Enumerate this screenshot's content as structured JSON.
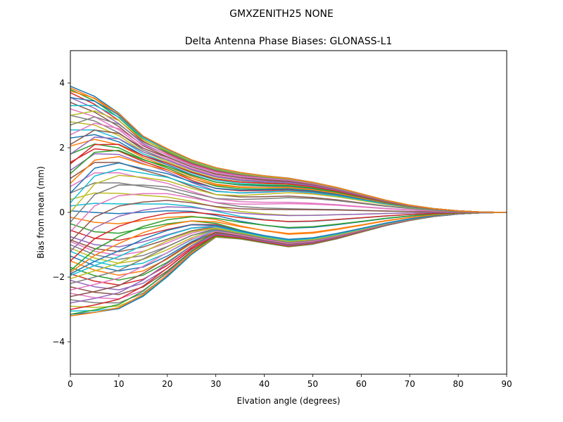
{
  "figure": {
    "suptitle": "GMXZENITH25     NONE"
  },
  "chart_data": {
    "type": "line",
    "title": "Delta Antenna Phase Biases: GLONASS-L1",
    "xlabel": "Elvation angle (degrees)",
    "ylabel": "Bias from mean (mm)",
    "xlim": [
      0,
      90
    ],
    "ylim": [
      -5,
      5
    ],
    "xticks": [
      0,
      10,
      20,
      30,
      40,
      50,
      60,
      70,
      80,
      90
    ],
    "yticks": [
      -4,
      -2,
      0,
      2,
      4
    ],
    "xtick_labels": [
      "0",
      "10",
      "20",
      "30",
      "40",
      "50",
      "60",
      "70",
      "80",
      "90"
    ],
    "ytick_labels": [
      "−4",
      "−2",
      "0",
      "2",
      "4"
    ],
    "grid": false,
    "legend": "none",
    "palette": [
      "#1f77b4",
      "#ff7f0e",
      "#2ca02c",
      "#d62728",
      "#9467bd",
      "#8c564b",
      "#e377c2",
      "#7f7f7f",
      "#bcbd22",
      "#17becf"
    ],
    "x": [
      0,
      5,
      10,
      15,
      20,
      25,
      30,
      35,
      40,
      45,
      50,
      55,
      60,
      65,
      70,
      75,
      80,
      85,
      90
    ],
    "series_count": 72,
    "series_description": "72 azimuth curves of antenna phase bias versus elevation, all converging to 0 at 90 degrees",
    "series_start_values": [
      3.9,
      3.85,
      3.8,
      3.7,
      3.55,
      3.4,
      3.2,
      3.0,
      2.8,
      2.55,
      2.3,
      2.05,
      1.8,
      1.55,
      1.3,
      1.05,
      0.8,
      0.6,
      0.4,
      0.2,
      0.05,
      -0.15,
      -0.35,
      -0.55,
      -0.75,
      -0.85,
      -0.9,
      -1.0,
      -1.1,
      -1.2,
      -1.35,
      -1.5,
      -1.7,
      -1.9,
      -2.1,
      -2.3,
      -2.5,
      -2.7,
      -2.9,
      -3.05,
      -3.15,
      -3.2,
      -3.15,
      -3.0,
      -2.8,
      -2.6,
      -2.4,
      -2.2,
      -2.05,
      -1.95,
      -1.9,
      -1.85,
      -1.8,
      -1.5,
      -1.2,
      -0.9,
      -0.6,
      -0.3,
      0.0,
      0.3,
      0.6,
      0.9,
      1.2,
      1.5,
      1.8,
      2.1,
      2.4,
      2.7,
      3.0,
      3.3,
      3.55,
      3.75
    ]
  }
}
